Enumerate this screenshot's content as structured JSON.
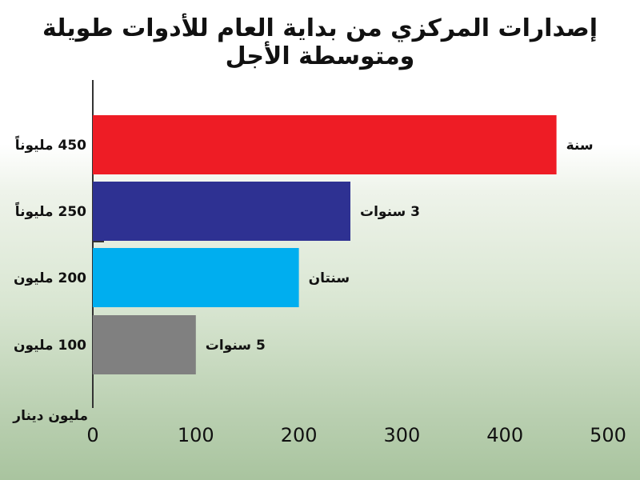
{
  "title": "إصدارات المركزي من بداية العام للأدوات طويلة ومتوسطة الأجل",
  "unit_label": "مليون دينار",
  "colors": {
    "axis": "#333333",
    "text": "#111111"
  },
  "chart_data": {
    "type": "bar",
    "orientation": "horizontal",
    "categories": [
      "سنة",
      "3 سنوات",
      "سنتان",
      "5 سنوات"
    ],
    "value_labels": [
      "450 مليوناً",
      "250 مليوناً",
      "200 مليون",
      "100 مليون"
    ],
    "values": [
      450,
      250,
      200,
      100
    ],
    "colors": [
      "#ee1c25",
      "#2e3192",
      "#00aeef",
      "#808080"
    ],
    "xlim": [
      0,
      500
    ],
    "xticks": [
      0,
      100,
      200,
      300,
      400,
      500
    ],
    "grid": false,
    "legend": "none"
  }
}
